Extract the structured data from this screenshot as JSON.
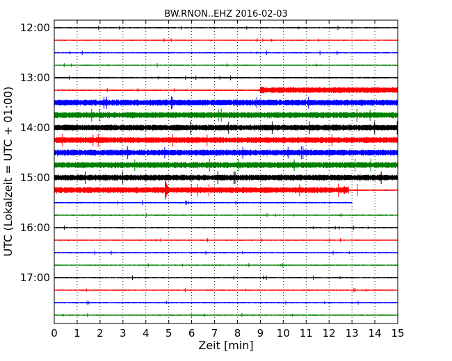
{
  "chart_data": {
    "type": "line",
    "title": "BW.RNON..EHZ 2016-02-03",
    "xlabel": "Zeit  [min]",
    "ylabel": "UTC (Lokalzeit = UTC + 01:00)",
    "xlim": [
      0,
      15
    ],
    "x_ticks": [
      "0",
      "1",
      "2",
      "3",
      "4",
      "5",
      "6",
      "7",
      "8",
      "9",
      "10",
      "11",
      "12",
      "13",
      "14",
      "15"
    ],
    "y_tick_labels": [
      "12:00",
      "13:00",
      "14:00",
      "15:00",
      "16:00",
      "17:00"
    ],
    "grid": "vertical dotted lines at each minute",
    "trace_interval_min": 15,
    "colors_cycle": [
      "#000000",
      "#ff0000",
      "#0000ff",
      "#008000"
    ],
    "traces": [
      {
        "start": "12:00",
        "color": "#000000",
        "amplitude": 1.0
      },
      {
        "start": "12:15",
        "color": "#ff0000",
        "amplitude": 1.0
      },
      {
        "start": "12:30",
        "color": "#0000ff",
        "amplitude": 1.0
      },
      {
        "start": "12:45",
        "color": "#008000",
        "amplitude": 1.0
      },
      {
        "start": "13:00",
        "color": "#000000",
        "amplitude": 1.2
      },
      {
        "start": "13:15",
        "color": "#ff0000",
        "amplitude": 1.2,
        "step_at_min": 9.0,
        "amplitude_after": 4.5
      },
      {
        "start": "13:30",
        "color": "#0000ff",
        "amplitude": 4.5
      },
      {
        "start": "13:45",
        "color": "#008000",
        "amplitude": 4.5
      },
      {
        "start": "14:00",
        "color": "#000000",
        "amplitude": 4.5
      },
      {
        "start": "14:15",
        "color": "#ff0000",
        "amplitude": 4.5
      },
      {
        "start": "14:30",
        "color": "#0000ff",
        "amplitude": 4.5
      },
      {
        "start": "14:45",
        "color": "#008000",
        "amplitude": 4.5
      },
      {
        "start": "15:00",
        "color": "#000000",
        "amplitude": 4.5
      },
      {
        "start": "15:15",
        "color": "#ff0000",
        "amplitude": 4.5,
        "event_at_min": 4.85,
        "event_amplitude": 15,
        "step_at_min": 12.7,
        "amplitude_after": 1.2
      },
      {
        "start": "15:30",
        "color": "#0000ff",
        "amplitude": 1.2,
        "end_min": 13.0
      },
      {
        "start": "15:45",
        "color": "#008000",
        "amplitude": 1.0
      },
      {
        "start": "16:00",
        "color": "#000000",
        "amplitude": 1.0
      },
      {
        "start": "16:15",
        "color": "#ff0000",
        "amplitude": 1.0
      },
      {
        "start": "16:30",
        "color": "#0000ff",
        "amplitude": 1.0
      },
      {
        "start": "16:45",
        "color": "#008000",
        "amplitude": 1.0
      },
      {
        "start": "17:00",
        "color": "#000000",
        "amplitude": 1.0
      },
      {
        "start": "17:15",
        "color": "#ff0000",
        "amplitude": 1.0
      },
      {
        "start": "17:30",
        "color": "#0000ff",
        "amplitude": 1.0
      },
      {
        "start": "17:45",
        "color": "#008000",
        "amplitude": 1.0
      }
    ]
  }
}
